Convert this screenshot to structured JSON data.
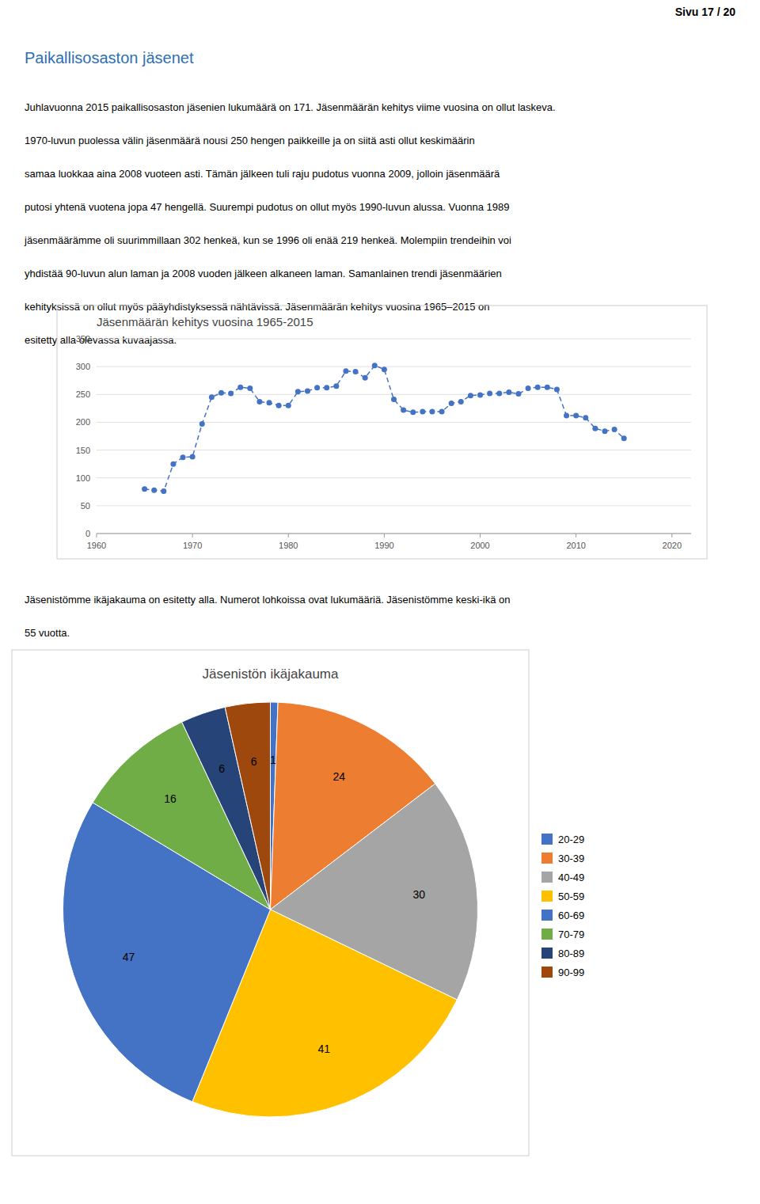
{
  "page_header": "Sivu 17 / 20",
  "section_title": "Paikallisosaston jäsenet",
  "body_text_1": [
    "Juhlavuonna 2015 paikallisosaston jäsenien lukumäärä on 171. Jäsenmäärän kehitys viime vuosina on ollut laskeva.",
    "1970-luvun puolessa välin jäsenmäärä nousi 250 hengen paikkeille ja on siitä asti ollut keskimäärin",
    "samaa luokkaa aina 2008 vuoteen asti. Tämän jälkeen tuli raju pudotus vuonna 2009, jolloin jäsenmäärä",
    "putosi yhtenä vuotena jopa 47 hengellä. Suurempi pudotus on ollut myös 1990-luvun alussa. Vuonna 1989",
    "jäsenmäärämme oli suurimmillaan 302 henkeä, kun se 1996 oli enää 219 henkeä. Molempiin trendeihin voi",
    "yhdistää 90-luvun alun laman ja 2008 vuoden jälkeen alkaneen laman. Samanlainen trendi jäsenmäärien",
    "kehityksissä on ollut myös pääyhdistyksessä nähtävissä. Jäsenmäärän kehitys vuosina 1965–2015 on",
    "esitetty alla olevassa kuvaajassa."
  ],
  "body_text_2": [
    "Jäsenistömme ikäjakauma on esitetty alla. Numerot lohkoissa ovat lukumääriä. Jäsenistömme keski-ikä on",
    "55 vuotta."
  ],
  "chart_data": [
    {
      "type": "line",
      "title": "Jäsenmäärän kehitys vuosina 1965-2015",
      "x": [
        1965,
        1966,
        1967,
        1968,
        1969,
        1970,
        1971,
        1972,
        1973,
        1974,
        1975,
        1976,
        1977,
        1978,
        1979,
        1980,
        1981,
        1982,
        1983,
        1984,
        1985,
        1986,
        1987,
        1988,
        1989,
        1990,
        1991,
        1992,
        1993,
        1994,
        1995,
        1996,
        1997,
        1998,
        1999,
        2000,
        2001,
        2002,
        2003,
        2004,
        2005,
        2006,
        2007,
        2008,
        2009,
        2010,
        2011,
        2012,
        2013,
        2014,
        2015
      ],
      "values": [
        80,
        78,
        76,
        125,
        137,
        138,
        197,
        245,
        253,
        252,
        263,
        261,
        237,
        235,
        230,
        230,
        255,
        256,
        262,
        262,
        265,
        292,
        291,
        280,
        302,
        295,
        241,
        222,
        218,
        219,
        219,
        219,
        234,
        237,
        248,
        249,
        252,
        252,
        254,
        251,
        261,
        263,
        263,
        259,
        212,
        212,
        208,
        189,
        184,
        187,
        171
      ],
      "color": "#4472C4",
      "xlim": [
        1960,
        2022
      ],
      "ylim": [
        0,
        350
      ],
      "xticks": [
        1960,
        1970,
        1980,
        1990,
        2000,
        2010,
        2020
      ],
      "yticks": [
        0,
        50,
        100,
        150,
        200,
        250,
        300,
        350
      ],
      "grid": true,
      "marker": "circle",
      "line_style": "dashed"
    },
    {
      "type": "pie",
      "title": "Jäsenistön ikäjakauma",
      "categories": [
        "20-29",
        "30-39",
        "40-49",
        "50-59",
        "60-69",
        "70-79",
        "80-89",
        "90-99"
      ],
      "values": [
        1,
        24,
        30,
        41,
        47,
        16,
        6,
        6
      ],
      "colors": [
        "#4472C4",
        "#ED7D31",
        "#A5A5A5",
        "#FFC000",
        "#4472C4",
        "#70AD47",
        "#264478",
        "#9E480E"
      ],
      "data_labels": true,
      "legend": "right"
    }
  ]
}
